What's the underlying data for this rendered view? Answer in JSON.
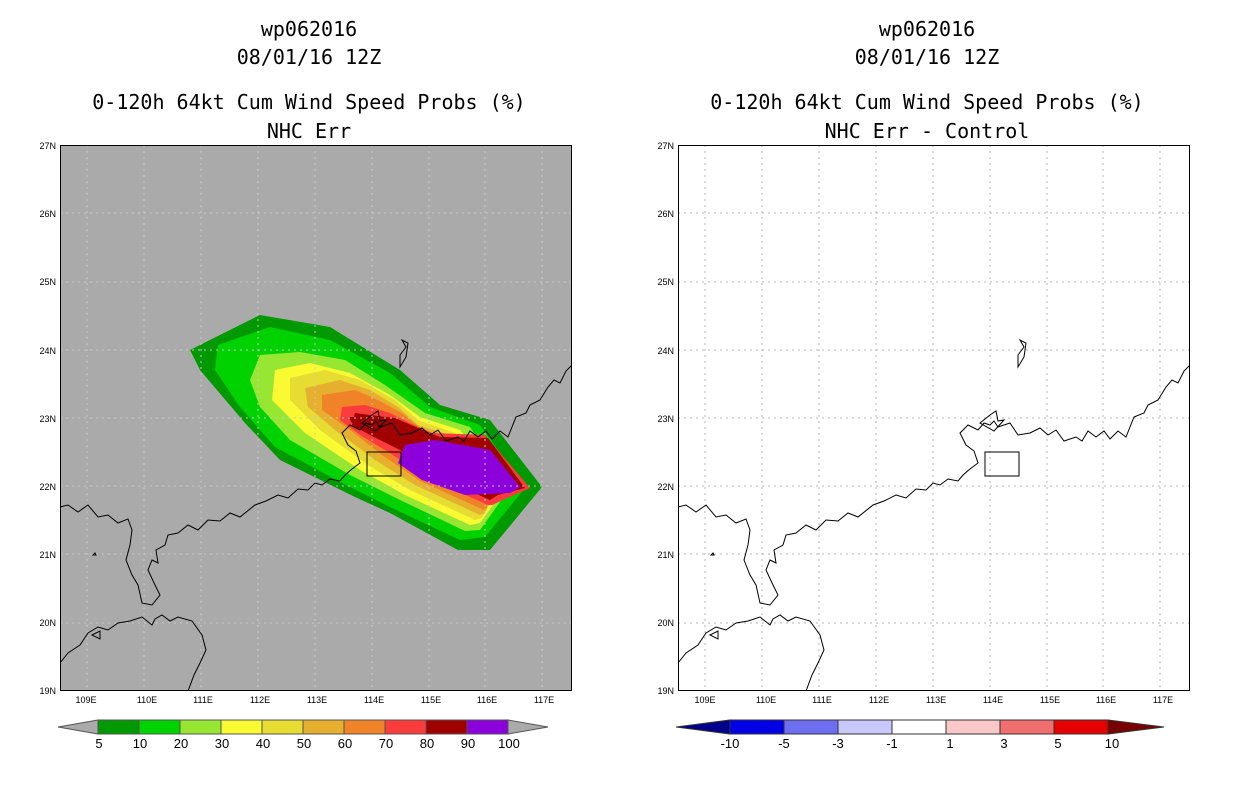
{
  "panels": [
    {
      "storm": "wp062016",
      "datetime": "08/01/16 12Z",
      "product": "0-120h 64kt Cum Wind Speed Probs (%)",
      "subtitle": "NHC Err",
      "colors": {
        "background": "#aaaaaa",
        "grid": "#c8c8c8",
        "coast": "#000000"
      },
      "colorbar": {
        "labels": [
          "5",
          "10",
          "20",
          "30",
          "40",
          "50",
          "60",
          "70",
          "80",
          "90",
          "100"
        ],
        "colors": [
          "#009a00",
          "#00d200",
          "#96e632",
          "#fafa32",
          "#e6dc32",
          "#e6af2d",
          "#f08228",
          "#fa3c3c",
          "#a00000",
          "#8c00dc"
        ],
        "arrow_color": "#aaaaaa"
      }
    },
    {
      "storm": "wp062016",
      "datetime": "08/01/16 12Z",
      "product": "0-120h 64kt Cum Wind Speed Probs (%)",
      "subtitle": "NHC Err - Control",
      "colors": {
        "background": "#ffffff",
        "grid": "#b4b4b4",
        "coast": "#000000"
      },
      "colorbar": {
        "labels": [
          "-10",
          "-5",
          "-3",
          "-1",
          "1",
          "3",
          "5",
          "10"
        ],
        "colors": [
          "#0000e6",
          "#6e6ef0",
          "#c8c8fa",
          "#ffffff",
          "#fac8c8",
          "#f06e6e",
          "#e60000"
        ],
        "left_arrow_color": "#00008c",
        "right_arrow_color": "#780000"
      }
    }
  ],
  "axes": {
    "lat_labels": [
      "27N",
      "26N",
      "25N",
      "24N",
      "23N",
      "22N",
      "21N",
      "20N",
      "19N"
    ],
    "lon_labels": [
      "109E",
      "110E",
      "111E",
      "112E",
      "113E",
      "114E",
      "115E",
      "116E",
      "117E"
    ]
  }
}
